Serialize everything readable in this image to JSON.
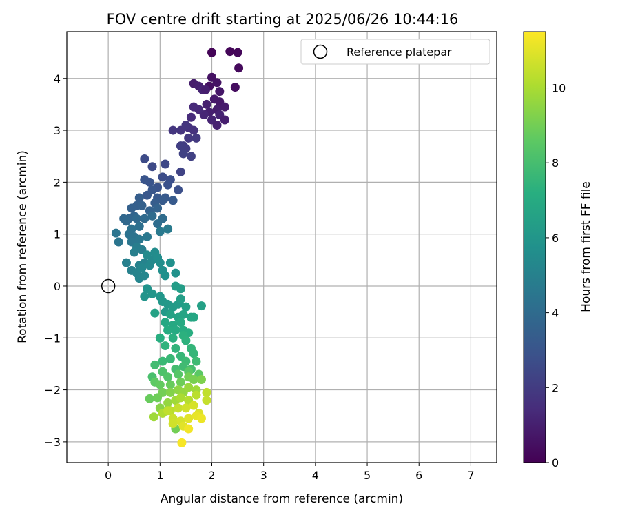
{
  "chart_data": {
    "type": "scatter",
    "title": "FOV centre drift starting at 2025/06/26 10:44:16",
    "xlabel": "Angular distance from reference (arcmin)",
    "ylabel": "Rotation from reference (arcmin)",
    "xlim": [
      -0.8,
      7.5
    ],
    "ylim": [
      -3.4,
      4.9
    ],
    "xticks": [
      "0",
      "1",
      "2",
      "3",
      "4",
      "5",
      "6",
      "7"
    ],
    "yticks": [
      "−3",
      "−2",
      "−1",
      "0",
      "1",
      "2",
      "3",
      "4"
    ],
    "grid": true,
    "legend": {
      "placement": "top-right",
      "entries": [
        "Reference platepar"
      ]
    },
    "reference_point": {
      "x": 0,
      "y": 0
    },
    "colorbar": {
      "label": "Hours from first FF file",
      "range": [
        0,
        11.5
      ],
      "ticks": [
        "0",
        "2",
        "4",
        "6",
        "8",
        "10"
      ],
      "colormap": "viridis"
    },
    "points": [
      [
        2.0,
        4.5,
        0.1
      ],
      [
        2.35,
        4.52,
        0.15
      ],
      [
        2.5,
        4.5,
        0.2
      ],
      [
        2.52,
        4.2,
        0.3
      ],
      [
        2.45,
        3.83,
        0.4
      ],
      [
        1.95,
        3.85,
        0.5
      ],
      [
        2.1,
        3.92,
        0.6
      ],
      [
        2.0,
        4.02,
        0.55
      ],
      [
        2.15,
        3.75,
        0.7
      ],
      [
        1.65,
        3.9,
        0.9
      ],
      [
        1.75,
        3.85,
        1.0
      ],
      [
        1.82,
        3.78,
        1.1
      ],
      [
        1.88,
        3.78,
        0.95
      ],
      [
        2.05,
        3.6,
        0.8
      ],
      [
        2.15,
        3.55,
        0.75
      ],
      [
        1.9,
        3.5,
        1.0
      ],
      [
        2.25,
        3.45,
        0.85
      ],
      [
        2.1,
        3.4,
        0.9
      ],
      [
        1.95,
        3.35,
        1.0
      ],
      [
        2.15,
        3.3,
        1.1
      ],
      [
        2.0,
        3.2,
        1.15
      ],
      [
        2.25,
        3.2,
        0.95
      ],
      [
        2.1,
        3.1,
        1.05
      ],
      [
        1.85,
        3.3,
        1.2
      ],
      [
        1.75,
        3.4,
        1.3
      ],
      [
        1.65,
        3.45,
        1.35
      ],
      [
        1.6,
        3.25,
        1.4
      ],
      [
        1.55,
        3.05,
        1.6
      ],
      [
        1.65,
        3.0,
        1.65
      ],
      [
        1.4,
        3.0,
        1.7
      ],
      [
        1.5,
        3.1,
        1.75
      ],
      [
        1.25,
        3.0,
        1.8
      ],
      [
        1.55,
        2.85,
        1.85
      ],
      [
        1.7,
        2.85,
        1.9
      ],
      [
        1.45,
        2.7,
        2.0
      ],
      [
        1.5,
        2.65,
        2.05
      ],
      [
        1.4,
        2.7,
        2.1
      ],
      [
        1.6,
        2.5,
        2.2
      ],
      [
        1.45,
        2.55,
        2.25
      ],
      [
        1.4,
        2.2,
        2.3
      ],
      [
        1.1,
        2.35,
        2.5
      ],
      [
        0.85,
        2.3,
        2.55
      ],
      [
        0.7,
        2.45,
        2.6
      ],
      [
        1.05,
        2.1,
        2.7
      ],
      [
        1.2,
        2.05,
        2.75
      ],
      [
        1.35,
        1.85,
        2.8
      ],
      [
        1.15,
        1.95,
        2.85
      ],
      [
        0.95,
        1.9,
        2.9
      ],
      [
        0.8,
        2.0,
        2.95
      ],
      [
        0.7,
        2.05,
        3.0
      ],
      [
        0.85,
        1.85,
        3.05
      ],
      [
        0.75,
        1.75,
        3.1
      ],
      [
        0.95,
        1.7,
        3.15
      ],
      [
        1.1,
        1.7,
        3.2
      ],
      [
        1.25,
        1.65,
        3.25
      ],
      [
        1.05,
        1.65,
        3.3
      ],
      [
        0.9,
        1.6,
        3.35
      ],
      [
        0.6,
        1.7,
        3.4
      ],
      [
        0.55,
        1.55,
        3.45
      ],
      [
        0.45,
        1.5,
        3.5
      ],
      [
        0.65,
        1.55,
        3.55
      ],
      [
        0.8,
        1.45,
        3.6
      ],
      [
        0.95,
        1.5,
        3.65
      ],
      [
        0.5,
        1.35,
        3.7
      ],
      [
        0.4,
        1.3,
        3.75
      ],
      [
        0.3,
        1.3,
        3.8
      ],
      [
        0.35,
        1.25,
        3.85
      ],
      [
        0.55,
        1.3,
        3.9
      ],
      [
        0.7,
        1.3,
        3.95
      ],
      [
        0.85,
        1.35,
        4.0
      ],
      [
        1.05,
        1.3,
        4.05
      ],
      [
        0.95,
        1.2,
        4.1
      ],
      [
        0.6,
        1.15,
        4.2
      ],
      [
        0.45,
        1.1,
        4.25
      ],
      [
        0.4,
        1.0,
        4.3
      ],
      [
        0.5,
        0.95,
        4.35
      ],
      [
        0.15,
        1.02,
        4.4
      ],
      [
        0.2,
        0.85,
        4.45
      ],
      [
        0.45,
        0.85,
        4.5
      ],
      [
        0.6,
        0.9,
        4.55
      ],
      [
        0.75,
        0.95,
        4.6
      ],
      [
        1.0,
        1.05,
        4.65
      ],
      [
        1.15,
        1.1,
        4.7
      ],
      [
        0.55,
        0.75,
        4.8
      ],
      [
        0.65,
        0.7,
        4.85
      ],
      [
        0.5,
        0.65,
        4.9
      ],
      [
        0.35,
        0.45,
        4.95
      ],
      [
        0.45,
        0.3,
        5.0
      ],
      [
        0.6,
        0.4,
        5.05
      ],
      [
        0.7,
        0.45,
        5.1
      ],
      [
        0.55,
        0.25,
        5.15
      ],
      [
        0.6,
        0.15,
        5.2
      ],
      [
        0.7,
        0.2,
        5.25
      ],
      [
        0.65,
        0.35,
        5.3
      ],
      [
        0.8,
        0.4,
        5.35
      ],
      [
        0.85,
        0.5,
        5.4
      ],
      [
        0.75,
        0.6,
        5.45
      ],
      [
        0.9,
        0.65,
        5.5
      ],
      [
        0.95,
        0.55,
        5.55
      ],
      [
        1.0,
        0.45,
        5.6
      ],
      [
        1.05,
        0.3,
        5.65
      ],
      [
        1.1,
        0.2,
        5.7
      ],
      [
        1.2,
        0.45,
        5.75
      ],
      [
        1.3,
        0.25,
        5.8
      ],
      [
        0.75,
        -0.05,
        5.85
      ],
      [
        0.7,
        -0.2,
        5.9
      ],
      [
        0.85,
        -0.15,
        5.95
      ],
      [
        1.0,
        -0.2,
        6.0
      ],
      [
        1.05,
        -0.3,
        6.05
      ],
      [
        1.15,
        -0.35,
        6.1
      ],
      [
        1.1,
        -0.5,
        6.15
      ],
      [
        1.25,
        -0.4,
        6.2
      ],
      [
        1.35,
        -0.35,
        6.25
      ],
      [
        1.3,
        0.0,
        6.3
      ],
      [
        1.4,
        -0.05,
        6.35
      ],
      [
        1.4,
        -0.25,
        6.4
      ],
      [
        1.5,
        -0.4,
        6.45
      ],
      [
        1.8,
        -0.38,
        6.5
      ],
      [
        0.9,
        -0.52,
        6.55
      ],
      [
        1.2,
        -0.55,
        6.6
      ],
      [
        1.35,
        -0.6,
        6.65
      ],
      [
        1.45,
        -0.55,
        6.7
      ],
      [
        1.6,
        -0.6,
        6.75
      ],
      [
        1.65,
        -0.6,
        6.8
      ],
      [
        1.1,
        -0.7,
        6.85
      ],
      [
        1.25,
        -0.75,
        6.9
      ],
      [
        1.4,
        -0.7,
        6.95
      ],
      [
        1.3,
        -0.85,
        7.0
      ],
      [
        1.15,
        -0.85,
        7.05
      ],
      [
        1.45,
        -0.85,
        7.1
      ],
      [
        1.55,
        -0.9,
        7.15
      ],
      [
        1.0,
        -1.0,
        7.2
      ],
      [
        1.25,
        -1.0,
        7.25
      ],
      [
        1.45,
        -0.95,
        7.3
      ],
      [
        1.5,
        -1.05,
        7.35
      ],
      [
        1.1,
        -1.15,
        7.4
      ],
      [
        1.3,
        -1.2,
        7.45
      ],
      [
        1.6,
        -1.2,
        7.5
      ],
      [
        1.65,
        -1.3,
        7.55
      ],
      [
        1.4,
        -1.35,
        7.6
      ],
      [
        1.2,
        -1.4,
        7.65
      ],
      [
        1.05,
        -1.45,
        7.7
      ],
      [
        1.5,
        -1.45,
        7.75
      ],
      [
        1.7,
        -1.45,
        7.8
      ],
      [
        1.45,
        -1.55,
        7.85
      ],
      [
        0.9,
        -1.52,
        7.9
      ],
      [
        1.3,
        -1.6,
        7.95
      ],
      [
        1.6,
        -1.6,
        8.0
      ],
      [
        0.85,
        -1.75,
        8.1
      ],
      [
        1.05,
        -1.65,
        8.2
      ],
      [
        1.15,
        -1.75,
        8.3
      ],
      [
        1.35,
        -1.7,
        8.4
      ],
      [
        1.55,
        -1.65,
        8.5
      ],
      [
        1.75,
        -1.7,
        8.55
      ],
      [
        0.9,
        -1.85,
        8.6
      ],
      [
        1.0,
        -1.9,
        8.7
      ],
      [
        1.2,
        -1.9,
        8.8
      ],
      [
        1.4,
        -1.85,
        8.9
      ],
      [
        1.55,
        -1.75,
        9.0
      ],
      [
        1.65,
        -1.8,
        9.1
      ],
      [
        1.8,
        -1.8,
        9.2
      ],
      [
        0.8,
        -2.17,
        8.8
      ],
      [
        0.95,
        -2.15,
        8.9
      ],
      [
        1.05,
        -2.05,
        9.0
      ],
      [
        1.2,
        -2.05,
        9.3
      ],
      [
        1.35,
        -2.0,
        9.5
      ],
      [
        1.45,
        -2.05,
        9.6
      ],
      [
        1.55,
        -1.95,
        9.7
      ],
      [
        1.7,
        -2.0,
        9.8
      ],
      [
        1.0,
        -2.35,
        9.4
      ],
      [
        1.15,
        -2.25,
        9.6
      ],
      [
        1.3,
        -2.2,
        9.8
      ],
      [
        1.4,
        -2.15,
        10.0
      ],
      [
        1.55,
        -2.2,
        10.2
      ],
      [
        1.7,
        -2.1,
        10.3
      ],
      [
        1.9,
        -2.05,
        10.4
      ],
      [
        1.9,
        -2.2,
        10.5
      ],
      [
        0.88,
        -2.52,
        9.8
      ],
      [
        1.05,
        -2.45,
        10.1
      ],
      [
        1.2,
        -2.4,
        10.3
      ],
      [
        1.35,
        -2.35,
        10.5
      ],
      [
        1.5,
        -2.35,
        10.7
      ],
      [
        1.65,
        -2.3,
        10.8
      ],
      [
        1.75,
        -2.45,
        10.9
      ],
      [
        1.25,
        -2.55,
        10.6
      ],
      [
        1.4,
        -2.6,
        10.8
      ],
      [
        1.55,
        -2.55,
        11.0
      ],
      [
        1.7,
        -2.5,
        11.1
      ],
      [
        1.8,
        -2.55,
        11.2
      ],
      [
        1.3,
        -2.75,
        9.0
      ],
      [
        1.45,
        -2.7,
        11.0
      ],
      [
        1.55,
        -2.75,
        11.3
      ],
      [
        1.42,
        -3.02,
        11.4
      ],
      [
        1.25,
        -2.65,
        10.7
      ],
      [
        1.15,
        -2.4,
        10.4
      ]
    ]
  }
}
